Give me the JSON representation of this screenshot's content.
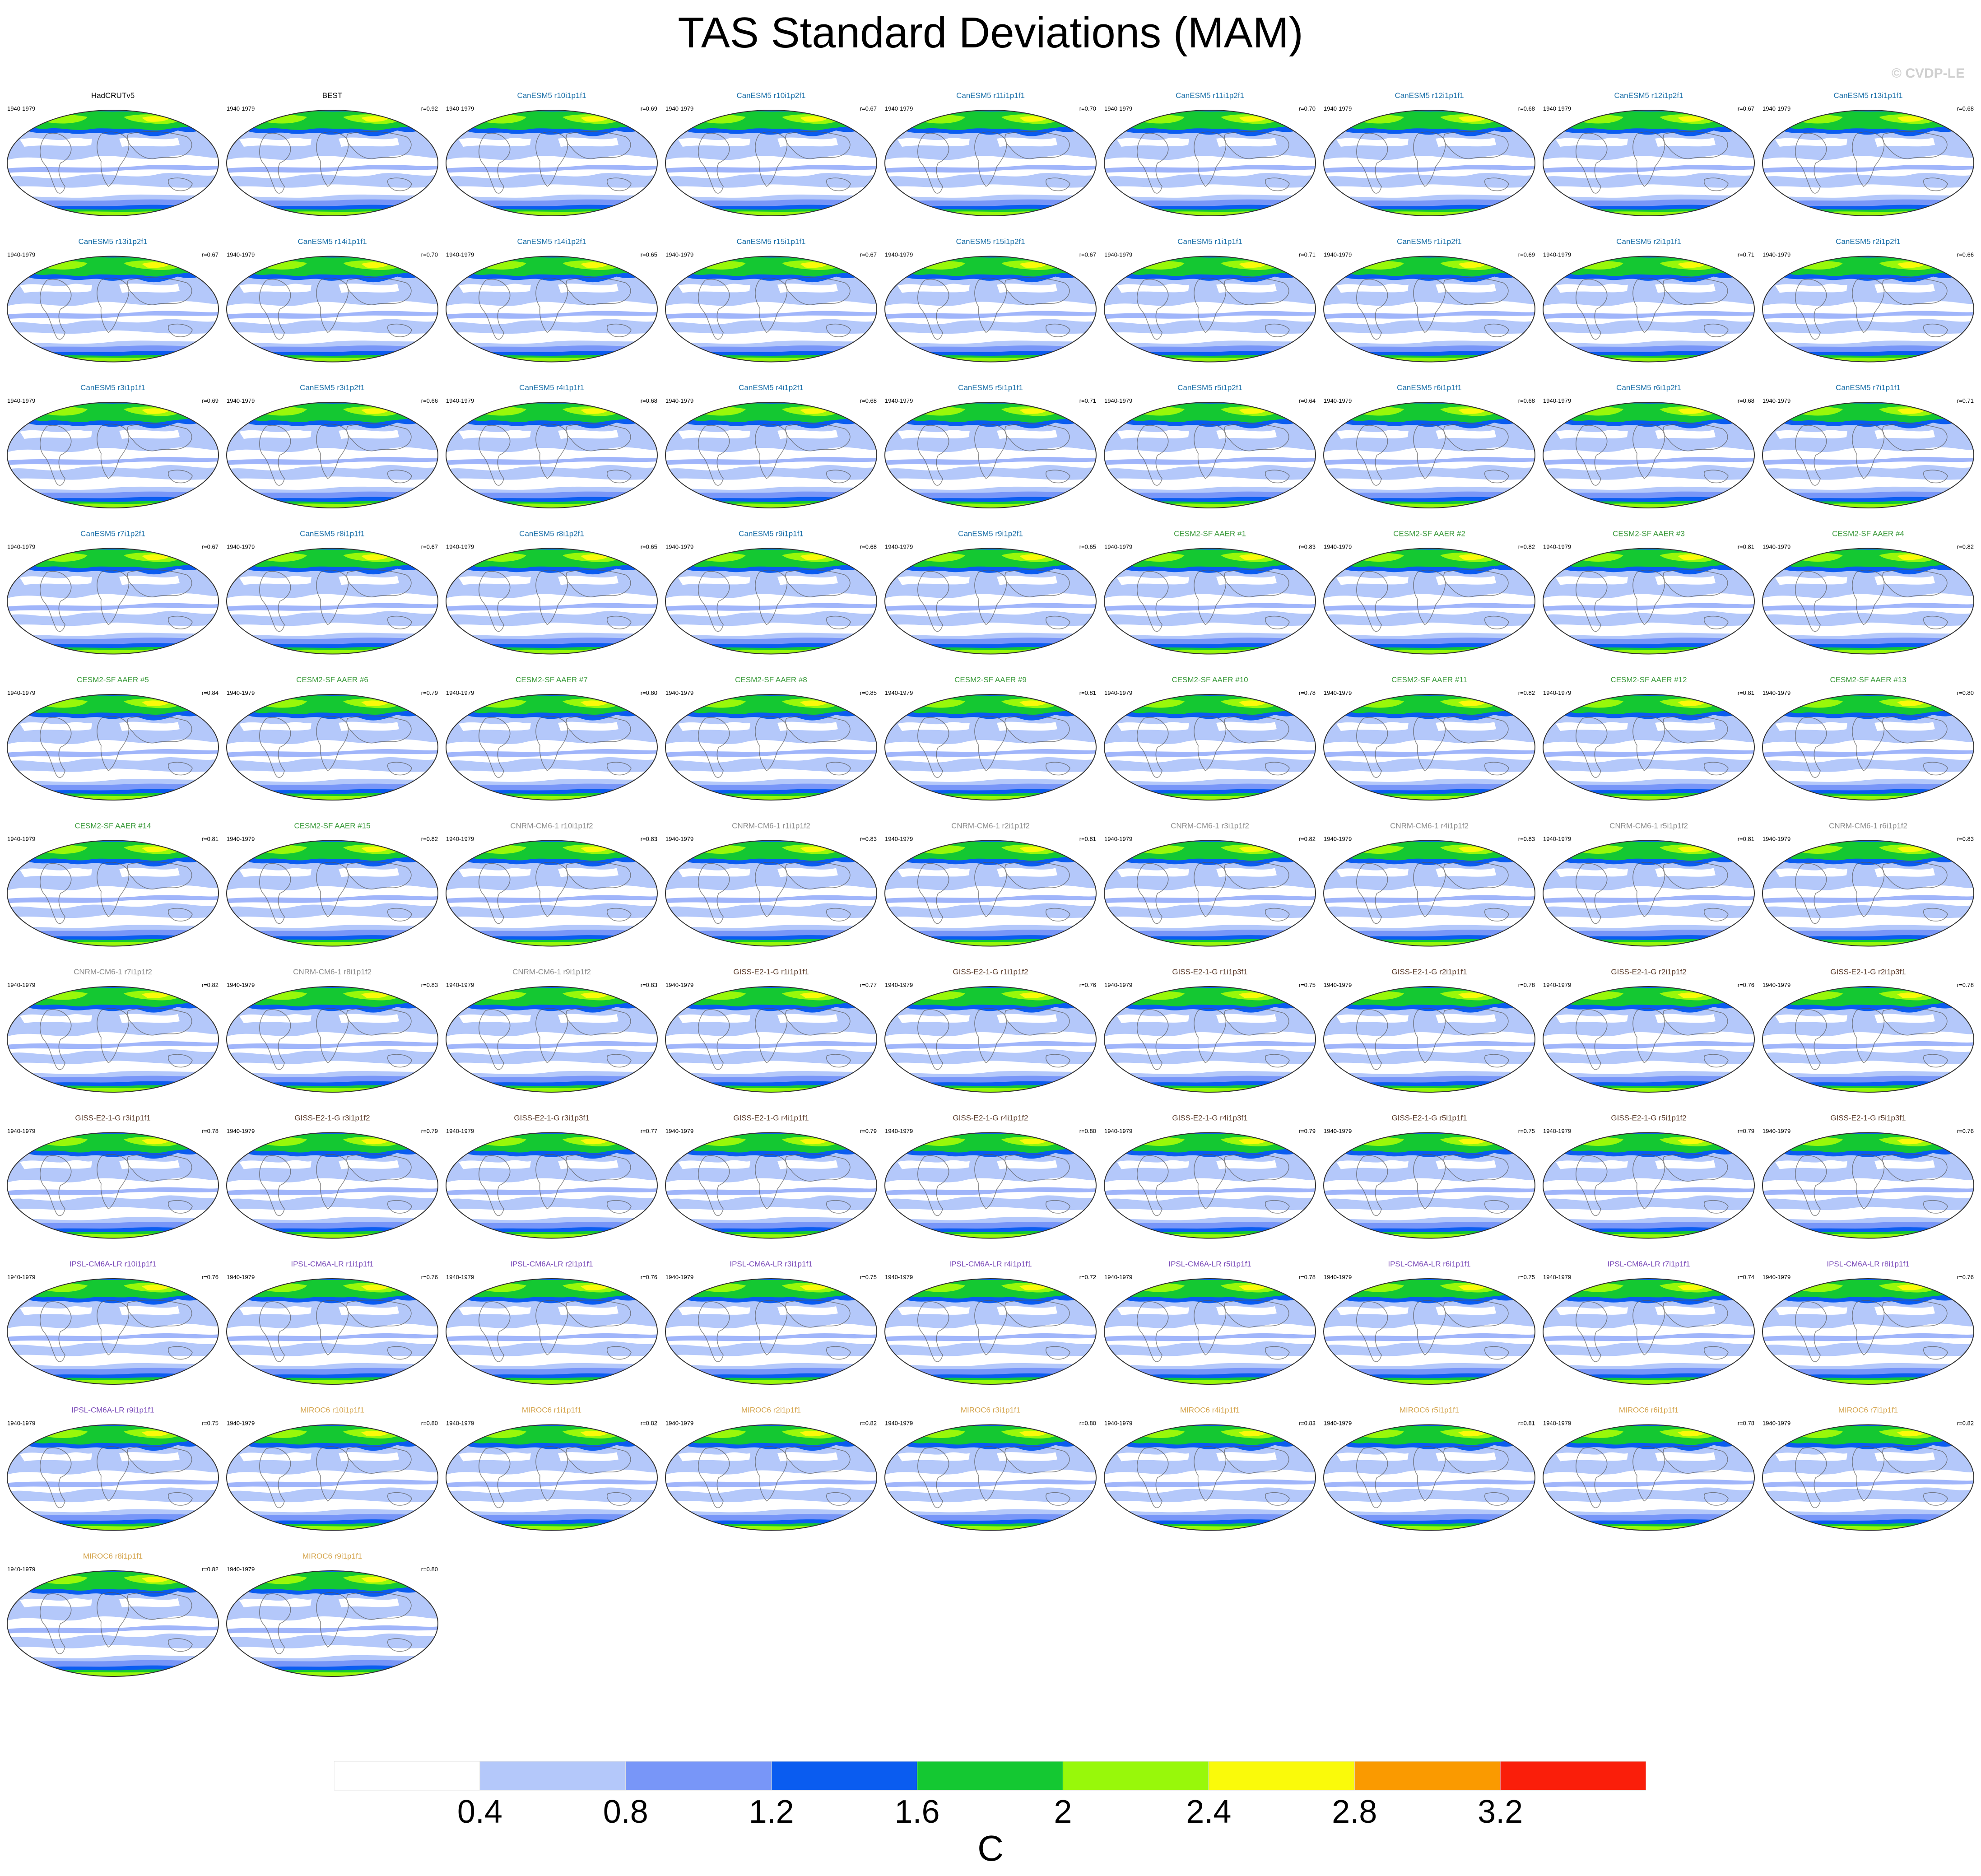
{
  "figure": {
    "title": "TAS Standard Deviations (MAM)",
    "copyright": "© CVDP-LE",
    "units": "C",
    "period": "1940-1979"
  },
  "colorbar": {
    "labels": [
      "0.4",
      "0.8",
      "1.2",
      "1.6",
      "2",
      "2.4",
      "2.8",
      "3.2"
    ],
    "colors": [
      "#ffffff",
      "#b4c8fa",
      "#7896f8",
      "#0a5cf0",
      "#14c832",
      "#98f80a",
      "#fafa0a",
      "#fa9a00",
      "#fa1e0a"
    ]
  },
  "model_colors": {
    "obs": "#000000",
    "CanESM5": "#1a6fa8",
    "CESM2-SF AAER": "#3a9a3a",
    "CNRM-CM6-1": "#8c8c8c",
    "GISS-E2-1-G": "#5a3a2a",
    "IPSL-CM6A-LR": "#7a4ab8",
    "MIROC6": "#d4a34a"
  },
  "panels": [
    {
      "name": "HadCRUTv5",
      "model": "obs",
      "r": ""
    },
    {
      "name": "BEST",
      "model": "obs",
      "r": "r=0.92"
    },
    {
      "name": "CanESM5 r10i1p1f1",
      "model": "CanESM5",
      "r": "r=0.69"
    },
    {
      "name": "CanESM5 r10i1p2f1",
      "model": "CanESM5",
      "r": "r=0.67"
    },
    {
      "name": "CanESM5 r11i1p1f1",
      "model": "CanESM5",
      "r": "r=0.70"
    },
    {
      "name": "CanESM5 r11i1p2f1",
      "model": "CanESM5",
      "r": "r=0.70"
    },
    {
      "name": "CanESM5 r12i1p1f1",
      "model": "CanESM5",
      "r": "r=0.68"
    },
    {
      "name": "CanESM5 r12i1p2f1",
      "model": "CanESM5",
      "r": "r=0.67"
    },
    {
      "name": "CanESM5 r13i1p1f1",
      "model": "CanESM5",
      "r": "r=0.68"
    },
    {
      "name": "CanESM5 r13i1p2f1",
      "model": "CanESM5",
      "r": "r=0.67"
    },
    {
      "name": "CanESM5 r14i1p1f1",
      "model": "CanESM5",
      "r": "r=0.70"
    },
    {
      "name": "CanESM5 r14i1p2f1",
      "model": "CanESM5",
      "r": "r=0.65"
    },
    {
      "name": "CanESM5 r15i1p1f1",
      "model": "CanESM5",
      "r": "r=0.67"
    },
    {
      "name": "CanESM5 r15i1p2f1",
      "model": "CanESM5",
      "r": "r=0.67"
    },
    {
      "name": "CanESM5 r1i1p1f1",
      "model": "CanESM5",
      "r": "r=0.71"
    },
    {
      "name": "CanESM5 r1i1p2f1",
      "model": "CanESM5",
      "r": "r=0.69"
    },
    {
      "name": "CanESM5 r2i1p1f1",
      "model": "CanESM5",
      "r": "r=0.71"
    },
    {
      "name": "CanESM5 r2i1p2f1",
      "model": "CanESM5",
      "r": "r=0.66"
    },
    {
      "name": "CanESM5 r3i1p1f1",
      "model": "CanESM5",
      "r": "r=0.69"
    },
    {
      "name": "CanESM5 r3i1p2f1",
      "model": "CanESM5",
      "r": "r=0.66"
    },
    {
      "name": "CanESM5 r4i1p1f1",
      "model": "CanESM5",
      "r": "r=0.68"
    },
    {
      "name": "CanESM5 r4i1p2f1",
      "model": "CanESM5",
      "r": "r=0.68"
    },
    {
      "name": "CanESM5 r5i1p1f1",
      "model": "CanESM5",
      "r": "r=0.71"
    },
    {
      "name": "CanESM5 r5i1p2f1",
      "model": "CanESM5",
      "r": "r=0.64"
    },
    {
      "name": "CanESM5 r6i1p1f1",
      "model": "CanESM5",
      "r": "r=0.68"
    },
    {
      "name": "CanESM5 r6i1p2f1",
      "model": "CanESM5",
      "r": "r=0.68"
    },
    {
      "name": "CanESM5 r7i1p1f1",
      "model": "CanESM5",
      "r": "r=0.71"
    },
    {
      "name": "CanESM5 r7i1p2f1",
      "model": "CanESM5",
      "r": "r=0.67"
    },
    {
      "name": "CanESM5 r8i1p1f1",
      "model": "CanESM5",
      "r": "r=0.67"
    },
    {
      "name": "CanESM5 r8i1p2f1",
      "model": "CanESM5",
      "r": "r=0.65"
    },
    {
      "name": "CanESM5 r9i1p1f1",
      "model": "CanESM5",
      "r": "r=0.68"
    },
    {
      "name": "CanESM5 r9i1p2f1",
      "model": "CanESM5",
      "r": "r=0.65"
    },
    {
      "name": "CESM2-SF AAER #1",
      "model": "CESM2-SF AAER",
      "r": "r=0.83"
    },
    {
      "name": "CESM2-SF AAER #2",
      "model": "CESM2-SF AAER",
      "r": "r=0.82"
    },
    {
      "name": "CESM2-SF AAER #3",
      "model": "CESM2-SF AAER",
      "r": "r=0.81"
    },
    {
      "name": "CESM2-SF AAER #4",
      "model": "CESM2-SF AAER",
      "r": "r=0.82"
    },
    {
      "name": "CESM2-SF AAER #5",
      "model": "CESM2-SF AAER",
      "r": "r=0.84"
    },
    {
      "name": "CESM2-SF AAER #6",
      "model": "CESM2-SF AAER",
      "r": "r=0.79"
    },
    {
      "name": "CESM2-SF AAER #7",
      "model": "CESM2-SF AAER",
      "r": "r=0.80"
    },
    {
      "name": "CESM2-SF AAER #8",
      "model": "CESM2-SF AAER",
      "r": "r=0.85"
    },
    {
      "name": "CESM2-SF AAER #9",
      "model": "CESM2-SF AAER",
      "r": "r=0.81"
    },
    {
      "name": "CESM2-SF AAER #10",
      "model": "CESM2-SF AAER",
      "r": "r=0.78"
    },
    {
      "name": "CESM2-SF AAER #11",
      "model": "CESM2-SF AAER",
      "r": "r=0.82"
    },
    {
      "name": "CESM2-SF AAER #12",
      "model": "CESM2-SF AAER",
      "r": "r=0.81"
    },
    {
      "name": "CESM2-SF AAER #13",
      "model": "CESM2-SF AAER",
      "r": "r=0.80"
    },
    {
      "name": "CESM2-SF AAER #14",
      "model": "CESM2-SF AAER",
      "r": "r=0.81"
    },
    {
      "name": "CESM2-SF AAER #15",
      "model": "CESM2-SF AAER",
      "r": "r=0.82"
    },
    {
      "name": "CNRM-CM6-1 r10i1p1f2",
      "model": "CNRM-CM6-1",
      "r": "r=0.83"
    },
    {
      "name": "CNRM-CM6-1 r1i1p1f2",
      "model": "CNRM-CM6-1",
      "r": "r=0.83"
    },
    {
      "name": "CNRM-CM6-1 r2i1p1f2",
      "model": "CNRM-CM6-1",
      "r": "r=0.81"
    },
    {
      "name": "CNRM-CM6-1 r3i1p1f2",
      "model": "CNRM-CM6-1",
      "r": "r=0.82"
    },
    {
      "name": "CNRM-CM6-1 r4i1p1f2",
      "model": "CNRM-CM6-1",
      "r": "r=0.83"
    },
    {
      "name": "CNRM-CM6-1 r5i1p1f2",
      "model": "CNRM-CM6-1",
      "r": "r=0.81"
    },
    {
      "name": "CNRM-CM6-1 r6i1p1f2",
      "model": "CNRM-CM6-1",
      "r": "r=0.83"
    },
    {
      "name": "CNRM-CM6-1 r7i1p1f2",
      "model": "CNRM-CM6-1",
      "r": "r=0.82"
    },
    {
      "name": "CNRM-CM6-1 r8i1p1f2",
      "model": "CNRM-CM6-1",
      "r": "r=0.83"
    },
    {
      "name": "CNRM-CM6-1 r9i1p1f2",
      "model": "CNRM-CM6-1",
      "r": "r=0.83"
    },
    {
      "name": "GISS-E2-1-G r1i1p1f1",
      "model": "GISS-E2-1-G",
      "r": "r=0.77"
    },
    {
      "name": "GISS-E2-1-G r1i1p1f2",
      "model": "GISS-E2-1-G",
      "r": "r=0.76"
    },
    {
      "name": "GISS-E2-1-G r1i1p3f1",
      "model": "GISS-E2-1-G",
      "r": "r=0.75"
    },
    {
      "name": "GISS-E2-1-G r2i1p1f1",
      "model": "GISS-E2-1-G",
      "r": "r=0.78"
    },
    {
      "name": "GISS-E2-1-G r2i1p1f2",
      "model": "GISS-E2-1-G",
      "r": "r=0.76"
    },
    {
      "name": "GISS-E2-1-G r2i1p3f1",
      "model": "GISS-E2-1-G",
      "r": "r=0.78"
    },
    {
      "name": "GISS-E2-1-G r3i1p1f1",
      "model": "GISS-E2-1-G",
      "r": "r=0.78"
    },
    {
      "name": "GISS-E2-1-G r3i1p1f2",
      "model": "GISS-E2-1-G",
      "r": "r=0.79"
    },
    {
      "name": "GISS-E2-1-G r3i1p3f1",
      "model": "GISS-E2-1-G",
      "r": "r=0.77"
    },
    {
      "name": "GISS-E2-1-G r4i1p1f1",
      "model": "GISS-E2-1-G",
      "r": "r=0.79"
    },
    {
      "name": "GISS-E2-1-G r4i1p1f2",
      "model": "GISS-E2-1-G",
      "r": "r=0.80"
    },
    {
      "name": "GISS-E2-1-G r4i1p3f1",
      "model": "GISS-E2-1-G",
      "r": "r=0.79"
    },
    {
      "name": "GISS-E2-1-G r5i1p1f1",
      "model": "GISS-E2-1-G",
      "r": "r=0.75"
    },
    {
      "name": "GISS-E2-1-G r5i1p1f2",
      "model": "GISS-E2-1-G",
      "r": "r=0.79"
    },
    {
      "name": "GISS-E2-1-G r5i1p3f1",
      "model": "GISS-E2-1-G",
      "r": "r=0.76"
    },
    {
      "name": "IPSL-CM6A-LR r10i1p1f1",
      "model": "IPSL-CM6A-LR",
      "r": "r=0.76"
    },
    {
      "name": "IPSL-CM6A-LR r1i1p1f1",
      "model": "IPSL-CM6A-LR",
      "r": "r=0.76"
    },
    {
      "name": "IPSL-CM6A-LR r2i1p1f1",
      "model": "IPSL-CM6A-LR",
      "r": "r=0.76"
    },
    {
      "name": "IPSL-CM6A-LR r3i1p1f1",
      "model": "IPSL-CM6A-LR",
      "r": "r=0.75"
    },
    {
      "name": "IPSL-CM6A-LR r4i1p1f1",
      "model": "IPSL-CM6A-LR",
      "r": "r=0.72"
    },
    {
      "name": "IPSL-CM6A-LR r5i1p1f1",
      "model": "IPSL-CM6A-LR",
      "r": "r=0.78"
    },
    {
      "name": "IPSL-CM6A-LR r6i1p1f1",
      "model": "IPSL-CM6A-LR",
      "r": "r=0.75"
    },
    {
      "name": "IPSL-CM6A-LR r7i1p1f1",
      "model": "IPSL-CM6A-LR",
      "r": "r=0.74"
    },
    {
      "name": "IPSL-CM6A-LR r8i1p1f1",
      "model": "IPSL-CM6A-LR",
      "r": "r=0.76"
    },
    {
      "name": "IPSL-CM6A-LR r9i1p1f1",
      "model": "IPSL-CM6A-LR",
      "r": "r=0.75"
    },
    {
      "name": "MIROC6 r10i1p1f1",
      "model": "MIROC6",
      "r": "r=0.80"
    },
    {
      "name": "MIROC6 r1i1p1f1",
      "model": "MIROC6",
      "r": "r=0.82"
    },
    {
      "name": "MIROC6 r2i1p1f1",
      "model": "MIROC6",
      "r": "r=0.82"
    },
    {
      "name": "MIROC6 r3i1p1f1",
      "model": "MIROC6",
      "r": "r=0.80"
    },
    {
      "name": "MIROC6 r4i1p1f1",
      "model": "MIROC6",
      "r": "r=0.83"
    },
    {
      "name": "MIROC6 r5i1p1f1",
      "model": "MIROC6",
      "r": "r=0.81"
    },
    {
      "name": "MIROC6 r6i1p1f1",
      "model": "MIROC6",
      "r": "r=0.78"
    },
    {
      "name": "MIROC6 r7i1p1f1",
      "model": "MIROC6",
      "r": "r=0.82"
    },
    {
      "name": "MIROC6 r8i1p1f1",
      "model": "MIROC6",
      "r": "r=0.82"
    },
    {
      "name": "MIROC6 r9i1p1f1",
      "model": "MIROC6",
      "r": "r=0.80"
    }
  ]
}
